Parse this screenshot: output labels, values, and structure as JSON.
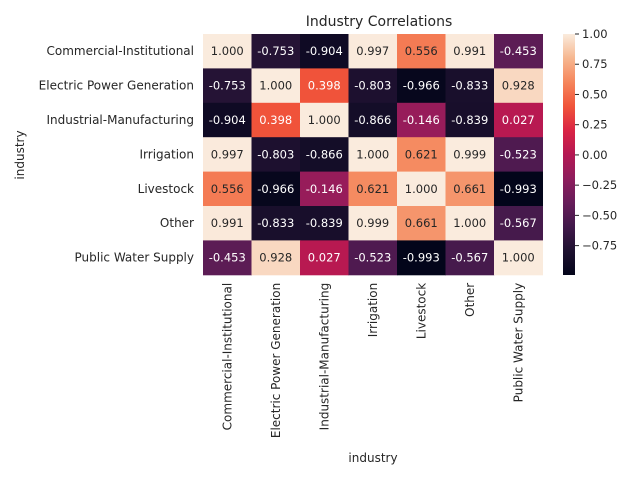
{
  "chart_data": {
    "type": "heatmap",
    "title": "Industry Correlations",
    "xlabel": "industry",
    "ylabel": "industry",
    "categories": [
      "Commercial-Institutional",
      "Electric Power Generation",
      "Industrial-Manufacturing",
      "Irrigation",
      "Livestock",
      "Other",
      "Public Water Supply"
    ],
    "values": [
      [
        1.0,
        -0.753,
        -0.904,
        0.997,
        0.556,
        0.991,
        -0.453
      ],
      [
        -0.753,
        1.0,
        0.398,
        -0.803,
        -0.966,
        -0.833,
        0.928
      ],
      [
        -0.904,
        0.398,
        1.0,
        -0.866,
        -0.146,
        -0.839,
        0.027
      ],
      [
        0.997,
        -0.803,
        -0.866,
        1.0,
        0.621,
        0.999,
        -0.523
      ],
      [
        0.556,
        -0.966,
        -0.146,
        0.621,
        1.0,
        0.661,
        -0.993
      ],
      [
        0.991,
        -0.833,
        -0.839,
        0.999,
        0.661,
        1.0,
        -0.567
      ],
      [
        -0.453,
        0.928,
        0.027,
        -0.523,
        -0.993,
        -0.567,
        1.0
      ]
    ],
    "value_labels": [
      [
        "1.000",
        "-0.753",
        "-0.904",
        "0.997",
        "0.556",
        "0.991",
        "-0.453"
      ],
      [
        "-0.753",
        "1.000",
        "0.398",
        "-0.803",
        "-0.966",
        "-0.833",
        "0.928"
      ],
      [
        "-0.904",
        "0.398",
        "1.000",
        "-0.866",
        "-0.146",
        "-0.839",
        "0.027"
      ],
      [
        "0.997",
        "-0.803",
        "-0.866",
        "1.000",
        "0.621",
        "0.999",
        "-0.523"
      ],
      [
        "0.556",
        "-0.966",
        "-0.146",
        "0.621",
        "1.000",
        "0.661",
        "-0.993"
      ],
      [
        "0.991",
        "-0.833",
        "-0.839",
        "0.999",
        "0.661",
        "1.000",
        "-0.567"
      ],
      [
        "-0.453",
        "0.928",
        "0.027",
        "-0.523",
        "-0.993",
        "-0.567",
        "1.000"
      ]
    ],
    "colorbar": {
      "min": -0.993,
      "max": 1.0,
      "ticks": [
        1.0,
        0.75,
        0.5,
        0.25,
        0.0,
        -0.25,
        -0.5,
        -0.75
      ],
      "tick_labels": [
        "1.00",
        "0.75",
        "0.50",
        "0.25",
        "0.00",
        "−0.25",
        "−0.50",
        "−0.75"
      ]
    },
    "colormap": "rocket",
    "grid": false
  }
}
